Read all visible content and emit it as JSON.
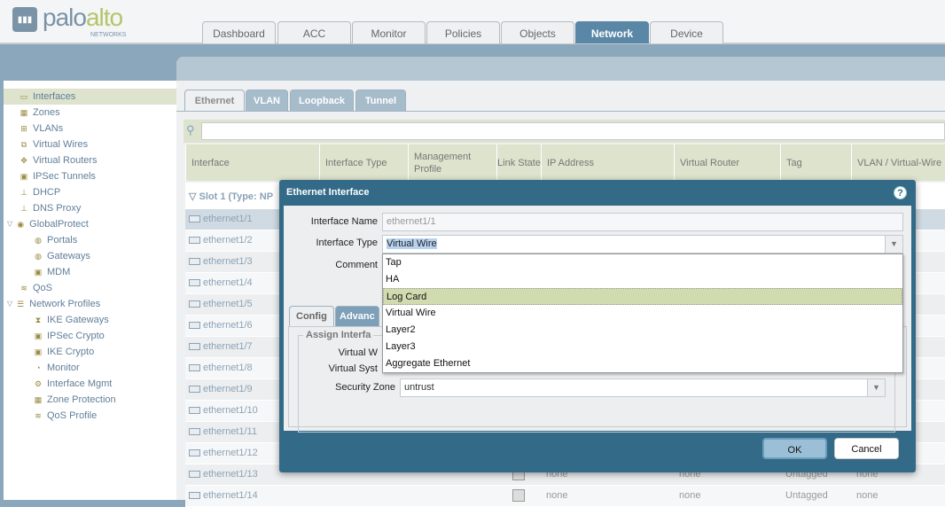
{
  "header": {
    "logo_main": "palo",
    "logo_accent": "alto",
    "logo_sub": "NETWORKS",
    "tabs": [
      "Dashboard",
      "ACC",
      "Monitor",
      "Policies",
      "Objects",
      "Network",
      "Device"
    ],
    "active_tab": "Network"
  },
  "sidebar": {
    "items": [
      {
        "label": "Interfaces",
        "icon": "interfaces-icon",
        "selected": true
      },
      {
        "label": "Zones",
        "icon": "zones-icon"
      },
      {
        "label": "VLANs",
        "icon": "vlans-icon"
      },
      {
        "label": "Virtual Wires",
        "icon": "virtual-wires-icon"
      },
      {
        "label": "Virtual Routers",
        "icon": "virtual-routers-icon"
      },
      {
        "label": "IPSec Tunnels",
        "icon": "ipsec-tunnels-icon"
      },
      {
        "label": "DHCP",
        "icon": "dhcp-icon"
      },
      {
        "label": "DNS Proxy",
        "icon": "dns-proxy-icon"
      },
      {
        "label": "GlobalProtect",
        "icon": "globalprotect-icon"
      },
      {
        "label": "Portals",
        "icon": "portals-icon"
      },
      {
        "label": "Gateways",
        "icon": "gateways-icon"
      },
      {
        "label": "MDM",
        "icon": "mdm-icon"
      },
      {
        "label": "QoS",
        "icon": "qos-icon"
      },
      {
        "label": "Network Profiles",
        "icon": "network-profiles-icon"
      },
      {
        "label": "IKE Gateways",
        "icon": "ike-gateways-icon"
      },
      {
        "label": "IPSec Crypto",
        "icon": "lock-icon"
      },
      {
        "label": "IKE Crypto",
        "icon": "lock-icon"
      },
      {
        "label": "Monitor",
        "icon": "monitor-icon"
      },
      {
        "label": "Interface Mgmt",
        "icon": "interface-mgmt-icon"
      },
      {
        "label": "Zone Protection",
        "icon": "zone-protection-icon"
      },
      {
        "label": "QoS Profile",
        "icon": "qos-profile-icon"
      }
    ]
  },
  "subtabs": [
    "Ethernet",
    "VLAN",
    "Loopback",
    "Tunnel"
  ],
  "table": {
    "headers": [
      "Interface",
      "Interface Type",
      "Management Profile",
      "Link State",
      "IP Address",
      "Virtual Router",
      "Tag",
      "VLAN / Virtual-Wire"
    ],
    "slot_label": "Slot 1 (Type: NP",
    "rows": [
      {
        "name": "ethernet1/1"
      },
      {
        "name": "ethernet1/2"
      },
      {
        "name": "ethernet1/3"
      },
      {
        "name": "ethernet1/4"
      },
      {
        "name": "ethernet1/5"
      },
      {
        "name": "ethernet1/6"
      },
      {
        "name": "ethernet1/7"
      },
      {
        "name": "ethernet1/8"
      },
      {
        "name": "ethernet1/9"
      },
      {
        "name": "ethernet1/10"
      },
      {
        "name": "ethernet1/11"
      },
      {
        "name": "ethernet1/12"
      },
      {
        "name": "ethernet1/13",
        "ip": "none",
        "vr": "none",
        "tag": "Untagged",
        "vlan": "none"
      },
      {
        "name": "ethernet1/14",
        "ip": "none",
        "vr": "none",
        "tag": "Untagged",
        "vlan": "none"
      }
    ]
  },
  "dialog": {
    "title": "Ethernet Interface",
    "interface_name_label": "Interface Name",
    "interface_name_value": "ethernet1/1",
    "interface_type_label": "Interface Type",
    "interface_type_value": "Virtual Wire",
    "comment_label": "Comment",
    "tabs": [
      "Config",
      "Advanc"
    ],
    "legend": "Assign Interfa",
    "virtual_wire_label": "Virtual W",
    "virtual_system_label": "Virtual Syst",
    "security_zone_label": "Security Zone",
    "security_zone_value": "untrust",
    "dropdown_options": [
      "Tap",
      "HA",
      "Log Card",
      "Virtual Wire",
      "Layer2",
      "Layer3",
      "Aggregate Ethernet"
    ],
    "hovered_option": "Log Card",
    "ok": "OK",
    "cancel": "Cancel"
  }
}
